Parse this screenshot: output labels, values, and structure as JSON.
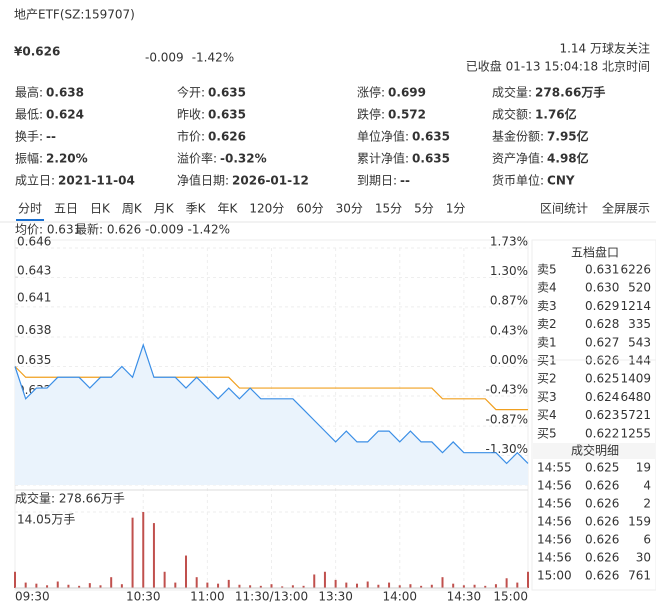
{
  "header": {
    "title": "地产ETF(SZ:159707)",
    "price": "¥0.626",
    "change": "-0.009",
    "percent": "-1.42%",
    "followers": "1.14 万球友关注",
    "status": "已收盘 01-13 15:04:18 北京时间"
  },
  "stats": [
    [
      {
        "label": "最高:",
        "value": "0.638",
        "color": "#dd2200"
      },
      {
        "label": "今开:",
        "value": "0.635"
      },
      {
        "label": "涨停:",
        "value": "0.699",
        "color": "#dd2200"
      },
      {
        "label": "成交量:",
        "value": "278.66万手"
      }
    ],
    [
      {
        "label": "最低:",
        "value": "0.624",
        "color": "#14a14b"
      },
      {
        "label": "昨收:",
        "value": "0.635"
      },
      {
        "label": "跌停:",
        "value": "0.572",
        "color": "#14a14b"
      },
      {
        "label": "成交额:",
        "value": "1.76亿"
      }
    ],
    [
      {
        "label": "换手:",
        "value": "--"
      },
      {
        "label": "市价:",
        "value": "0.626"
      },
      {
        "label": "单位净值:",
        "value": "0.635"
      },
      {
        "label": "基金份额:",
        "value": "7.95亿"
      }
    ],
    [
      {
        "label": "振幅:",
        "value": "2.20%"
      },
      {
        "label": "溢价率:",
        "value": "-0.32%"
      },
      {
        "label": "累计净值:",
        "value": "0.635"
      },
      {
        "label": "资产净值:",
        "value": "4.98亿"
      }
    ],
    [
      {
        "label": "成立日:",
        "value": "2021-11-04"
      },
      {
        "label": "净值日期:",
        "value": "2026-01-12"
      },
      {
        "label": "到期日:",
        "value": "--"
      },
      {
        "label": "货币单位:",
        "value": "CNY"
      }
    ]
  ],
  "tabs": [
    "分时",
    "五日",
    "日K",
    "周K",
    "月K",
    "季K",
    "年K",
    "120分",
    "60分",
    "30分",
    "15分",
    "5分",
    "1分"
  ],
  "tab_links": [
    "区间统计",
    "全屏展示"
  ],
  "chart_data": [
    {
      "type": "line",
      "xlim": [
        0,
        240
      ],
      "xticks": [
        {
          "value": 0,
          "label": "09:30"
        },
        {
          "value": 60,
          "label": "10:30"
        },
        {
          "value": 90,
          "label": "11:00"
        },
        {
          "value": 120,
          "label": "11:30/13:00"
        },
        {
          "value": 150,
          "label": "13:30"
        },
        {
          "value": 180,
          "label": "14:00"
        },
        {
          "value": 210,
          "label": "14:30"
        },
        {
          "value": 240,
          "label": "15:00"
        }
      ],
      "ylim": [
        0.624,
        0.646
      ],
      "yticks": [
        0.646,
        {
          "value": 0.6433,
          "label": "0.643"
        },
        {
          "value": 0.6408,
          "label": "0.641"
        },
        {
          "value": 0.6378,
          "label": "0.638"
        },
        0.635,
        {
          "value": 0.6322,
          "label": "0.632"
        },
        {
          "value": 0.6295,
          "label": "0.629"
        },
        {
          "value": 0.6268,
          "label": "0.627"
        },
        0.624
      ],
      "y2lim": [
        -1.73,
        1.73
      ],
      "y2ticks": [
        {
          "value": 1.73,
          "label": "1.73%"
        },
        {
          "value": 1.3,
          "label": "1.30%"
        },
        {
          "value": 0.87,
          "label": "0.87%"
        },
        {
          "value": 0.43,
          "label": "0.43%"
        },
        {
          "value": 0,
          "label": "0.00%"
        },
        {
          "value": -0.43,
          "label": "-0.43%"
        },
        {
          "value": -0.87,
          "label": "-0.87%"
        },
        {
          "value": -1.3,
          "label": "-1.30%"
        },
        {
          "value": -1.73,
          "label": "-1.73%"
        }
      ],
      "x": [
        0,
        5,
        10,
        15,
        20,
        25,
        30,
        35,
        40,
        45,
        50,
        55,
        60,
        65,
        70,
        75,
        80,
        85,
        90,
        95,
        100,
        105,
        110,
        115,
        120,
        125,
        130,
        135,
        140,
        145,
        150,
        155,
        160,
        165,
        170,
        175,
        180,
        185,
        190,
        195,
        200,
        205,
        210,
        215,
        220,
        225,
        230,
        235,
        240
      ],
      "series": [
        {
          "name": "均价: 0.631",
          "color": "#f0a020",
          "values": [
            0.635,
            0.634,
            0.634,
            0.634,
            0.634,
            0.634,
            0.634,
            0.634,
            0.634,
            0.634,
            0.634,
            0.634,
            0.634,
            0.634,
            0.634,
            0.634,
            0.634,
            0.634,
            0.634,
            0.634,
            0.634,
            0.633,
            0.633,
            0.633,
            0.633,
            0.633,
            0.633,
            0.633,
            0.633,
            0.633,
            0.633,
            0.633,
            0.633,
            0.633,
            0.633,
            0.633,
            0.633,
            0.633,
            0.633,
            0.633,
            0.632,
            0.632,
            0.632,
            0.632,
            0.632,
            0.631,
            0.631,
            0.631,
            0.631
          ]
        },
        {
          "name": "最新: 0.626 -0.009 -1.42%",
          "color": "#3a8ee6",
          "values": [
            0.635,
            0.632,
            0.633,
            0.633,
            0.634,
            0.634,
            0.634,
            0.633,
            0.634,
            0.634,
            0.635,
            0.634,
            0.637,
            0.634,
            0.634,
            0.634,
            0.633,
            0.634,
            0.633,
            0.632,
            0.633,
            0.632,
            0.633,
            0.632,
            0.632,
            0.632,
            0.632,
            0.631,
            0.63,
            0.629,
            0.628,
            0.629,
            0.628,
            0.628,
            0.629,
            0.629,
            0.628,
            0.629,
            0.628,
            0.628,
            0.627,
            0.628,
            0.627,
            0.627,
            0.627,
            0.627,
            0.626,
            0.627,
            0.626
          ]
        }
      ]
    },
    {
      "type": "bar",
      "title": "成交量: 278.66万手",
      "ylim": [
        0,
        14.05
      ],
      "yticks": [
        {
          "value": 14.05,
          "label": "14.05万手"
        }
      ],
      "color": "#c0504d",
      "x": [
        0,
        5,
        10,
        15,
        20,
        25,
        30,
        35,
        40,
        45,
        50,
        55,
        60,
        65,
        70,
        75,
        80,
        85,
        90,
        95,
        100,
        105,
        110,
        115,
        120,
        125,
        130,
        135,
        140,
        145,
        150,
        155,
        160,
        165,
        170,
        175,
        180,
        185,
        190,
        195,
        200,
        205,
        210,
        215,
        220,
        225,
        230,
        235,
        240
      ],
      "values": [
        3,
        1,
        0.8,
        0.5,
        1.2,
        0.6,
        0.4,
        0.9,
        0.5,
        2,
        0.7,
        13,
        14.05,
        12,
        3,
        1,
        6,
        2,
        1,
        0.8,
        1.5,
        0.6,
        0.5,
        0.4,
        0.7,
        0.3,
        0.5,
        0.4,
        2.5,
        3,
        1.5,
        1,
        0.8,
        1.2,
        0.6,
        1,
        0.5,
        0.7,
        0.4,
        0.6,
        2,
        0.8,
        0.5,
        0.6,
        0.4,
        0.7,
        1.8,
        1,
        3
      ]
    }
  ],
  "order_book": {
    "title": "五档盘口",
    "rows": [
      {
        "label": "卖5",
        "price": "0.631",
        "volume": "6226"
      },
      {
        "label": "卖4",
        "price": "0.630",
        "volume": "520"
      },
      {
        "label": "卖3",
        "price": "0.629",
        "volume": "1214"
      },
      {
        "label": "卖2",
        "price": "0.628",
        "volume": "335"
      },
      {
        "label": "卖1",
        "price": "0.627",
        "volume": "543"
      },
      {
        "label": "买1",
        "price": "0.626",
        "volume": "144"
      },
      {
        "label": "买2",
        "price": "0.625",
        "volume": "1409"
      },
      {
        "label": "买3",
        "price": "0.624",
        "volume": "6480"
      },
      {
        "label": "买4",
        "price": "0.623",
        "volume": "5721"
      },
      {
        "label": "买5",
        "price": "0.622",
        "volume": "1255"
      }
    ]
  },
  "trades": {
    "title": "成交明细",
    "rows": [
      {
        "time": "14:55",
        "price": "0.625",
        "volume": "19",
        "color": "#14a14b"
      },
      {
        "time": "14:56",
        "price": "0.626",
        "volume": "4",
        "color": "#dd2200"
      },
      {
        "time": "14:56",
        "price": "0.626",
        "volume": "2",
        "color": "#dd2200"
      },
      {
        "time": "14:56",
        "price": "0.626",
        "volume": "159",
        "color": "#dd2200"
      },
      {
        "time": "14:56",
        "price": "0.626",
        "volume": "6",
        "color": "#dd2200"
      },
      {
        "time": "14:56",
        "price": "0.626",
        "volume": "30",
        "color": "#dd2200"
      },
      {
        "time": "15:00",
        "price": "0.626",
        "volume": "761",
        "color": "#dd2200"
      }
    ]
  }
}
